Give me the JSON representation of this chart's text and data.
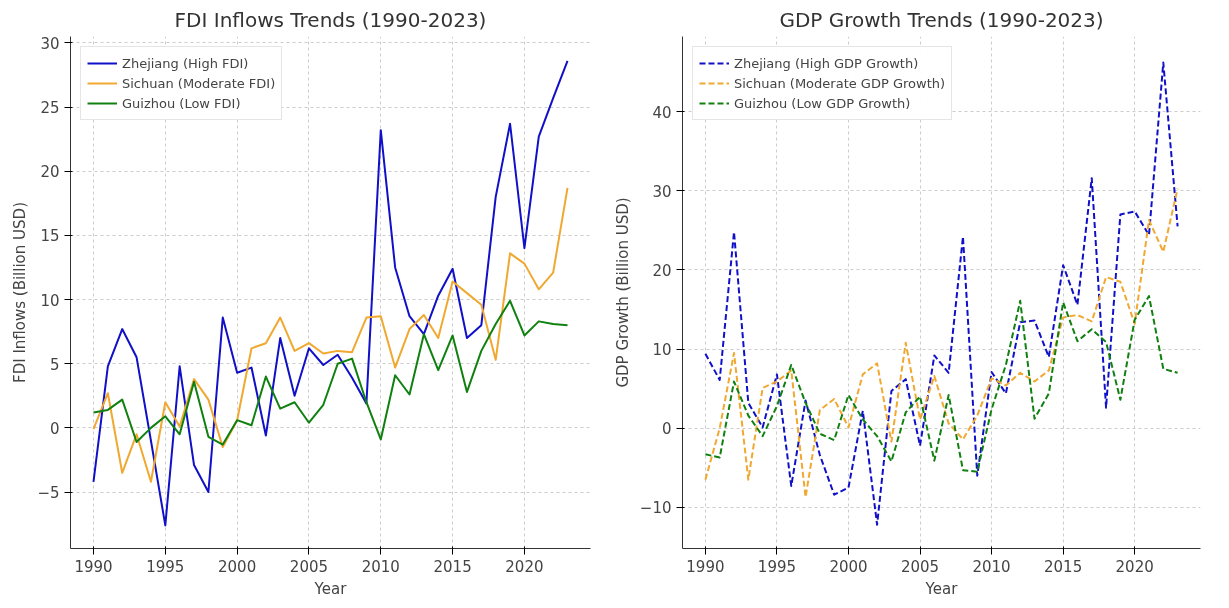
{
  "chart_data": [
    {
      "type": "line",
      "title": "FDI Inflows Trends (1990-2023)",
      "xlabel": "Year",
      "ylabel": "FDI Inflows (Billion USD)",
      "x": [
        1990,
        1991,
        1992,
        1993,
        1994,
        1995,
        1996,
        1997,
        1998,
        1999,
        2000,
        2001,
        2002,
        2003,
        2004,
        2005,
        2006,
        2007,
        2008,
        2009,
        2010,
        2011,
        2012,
        2013,
        2014,
        2015,
        2016,
        2017,
        2018,
        2019,
        2020,
        2021,
        2022,
        2023
      ],
      "series": [
        {
          "name": "Zhejiang (High FDI)",
          "color": "#1010c8",
          "values": [
            -4.2,
            4.8,
            7.7,
            5.5,
            -1.0,
            -7.6,
            4.8,
            -2.9,
            -5.0,
            8.6,
            4.3,
            4.7,
            -0.6,
            7.0,
            2.5,
            6.2,
            4.9,
            5.7,
            3.9,
            1.9,
            23.2,
            12.5,
            8.7,
            7.3,
            10.3,
            12.4,
            7.0,
            8.0,
            18.0,
            23.7,
            14.0,
            22.7,
            25.7,
            28.6
          ]
        },
        {
          "name": "Sichuan (Moderate FDI)",
          "color": "#f0a830",
          "values": [
            -0.1,
            2.7,
            -3.5,
            -0.5,
            -4.2,
            2.0,
            0.1,
            3.8,
            2.2,
            -1.5,
            0.6,
            6.2,
            6.6,
            8.6,
            6.0,
            6.6,
            5.8,
            6.0,
            5.9,
            8.6,
            8.7,
            4.7,
            7.7,
            8.8,
            7.0,
            11.4,
            10.5,
            9.6,
            5.3,
            13.6,
            12.8,
            10.8,
            12.1,
            18.7
          ]
        },
        {
          "name": "Guizhou (Low FDI)",
          "color": "#108010",
          "values": [
            1.2,
            1.4,
            2.2,
            -1.1,
            0.0,
            0.9,
            -0.5,
            3.6,
            -0.7,
            -1.3,
            0.6,
            0.2,
            4.0,
            1.5,
            2.0,
            0.4,
            1.8,
            5.0,
            5.4,
            2.0,
            -0.9,
            4.1,
            2.6,
            7.3,
            4.5,
            7.2,
            2.8,
            6.0,
            8.1,
            9.9,
            7.2,
            8.3,
            8.1,
            8.0
          ]
        }
      ],
      "xlim": [
        1988.4,
        2024.6
      ],
      "xticks": [
        1990,
        1995,
        2000,
        2005,
        2010,
        2015,
        2020
      ],
      "ylim": [
        -9.4,
        30.5
      ],
      "yticks": [
        {
          "value": -5,
          "label": "−5"
        },
        0,
        5,
        10,
        15,
        20,
        25,
        30
      ],
      "grid": true,
      "legend": "top left",
      "line_style": "solid",
      "marker": "none"
    },
    {
      "type": "line",
      "title": "GDP Growth Trends (1990-2023)",
      "xlabel": "Year",
      "ylabel": "GDP Growth (Billion USD)",
      "x": [
        1990,
        1991,
        1992,
        1993,
        1994,
        1995,
        1996,
        1997,
        1998,
        1999,
        2000,
        2001,
        2002,
        2003,
        2004,
        2005,
        2006,
        2007,
        2008,
        2009,
        2010,
        2011,
        2012,
        2013,
        2014,
        2015,
        2016,
        2017,
        2018,
        2019,
        2020,
        2021,
        2022,
        2023
      ],
      "series": [
        {
          "name": "Zhejiang (High GDP Growth)",
          "color": "#1010c8",
          "values": [
            9.4,
            6.1,
            24.8,
            3.2,
            0.1,
            6.8,
            -7.3,
            3.5,
            -3.4,
            -8.4,
            -7.5,
            2.2,
            -12.2,
            4.7,
            6.2,
            -2.2,
            9.2,
            7.0,
            24.2,
            -6.0,
            7.1,
            4.4,
            13.4,
            13.6,
            9.0,
            20.6,
            15.6,
            31.6,
            2.6,
            27.0,
            27.4,
            24.4,
            46.2,
            25.5
          ]
        },
        {
          "name": "Sichuan (Moderate GDP Growth)",
          "color": "#f0a830",
          "values": [
            -6.5,
            0.0,
            9.5,
            -6.5,
            5.1,
            5.9,
            7.3,
            -8.7,
            2.3,
            3.7,
            0.1,
            6.8,
            8.2,
            -1.7,
            10.8,
            1.1,
            6.6,
            0.6,
            -1.4,
            1.6,
            6.3,
            5.4,
            7.0,
            5.9,
            7.3,
            14.0,
            14.3,
            13.5,
            19.1,
            18.5,
            13.2,
            26.3,
            22.3,
            30.3
          ]
        },
        {
          "name": "Guizhou (Low GDP Growth)",
          "color": "#108010",
          "values": [
            -3.3,
            -3.7,
            5.9,
            1.6,
            -1.0,
            2.8,
            8.0,
            3.2,
            -0.7,
            -1.5,
            4.2,
            1.1,
            -1.0,
            -4.2,
            2.0,
            4.0,
            -4.1,
            4.2,
            -5.3,
            -5.5,
            2.4,
            8.0,
            16.1,
            1.2,
            4.4,
            15.9,
            11.0,
            12.5,
            10.9,
            3.6,
            13.7,
            16.7,
            7.5,
            7.0
          ]
        }
      ],
      "xlim": [
        1988.4,
        2024.6
      ],
      "xticks": [
        1990,
        1995,
        2000,
        2005,
        2010,
        2015,
        2020
      ],
      "ylim": [
        -15.2,
        49.5
      ],
      "yticks": [
        {
          "value": -10,
          "label": "−10"
        },
        0,
        10,
        20,
        30,
        40
      ],
      "grid": true,
      "legend": "top left",
      "line_style": "dashed",
      "marker": "none"
    }
  ]
}
